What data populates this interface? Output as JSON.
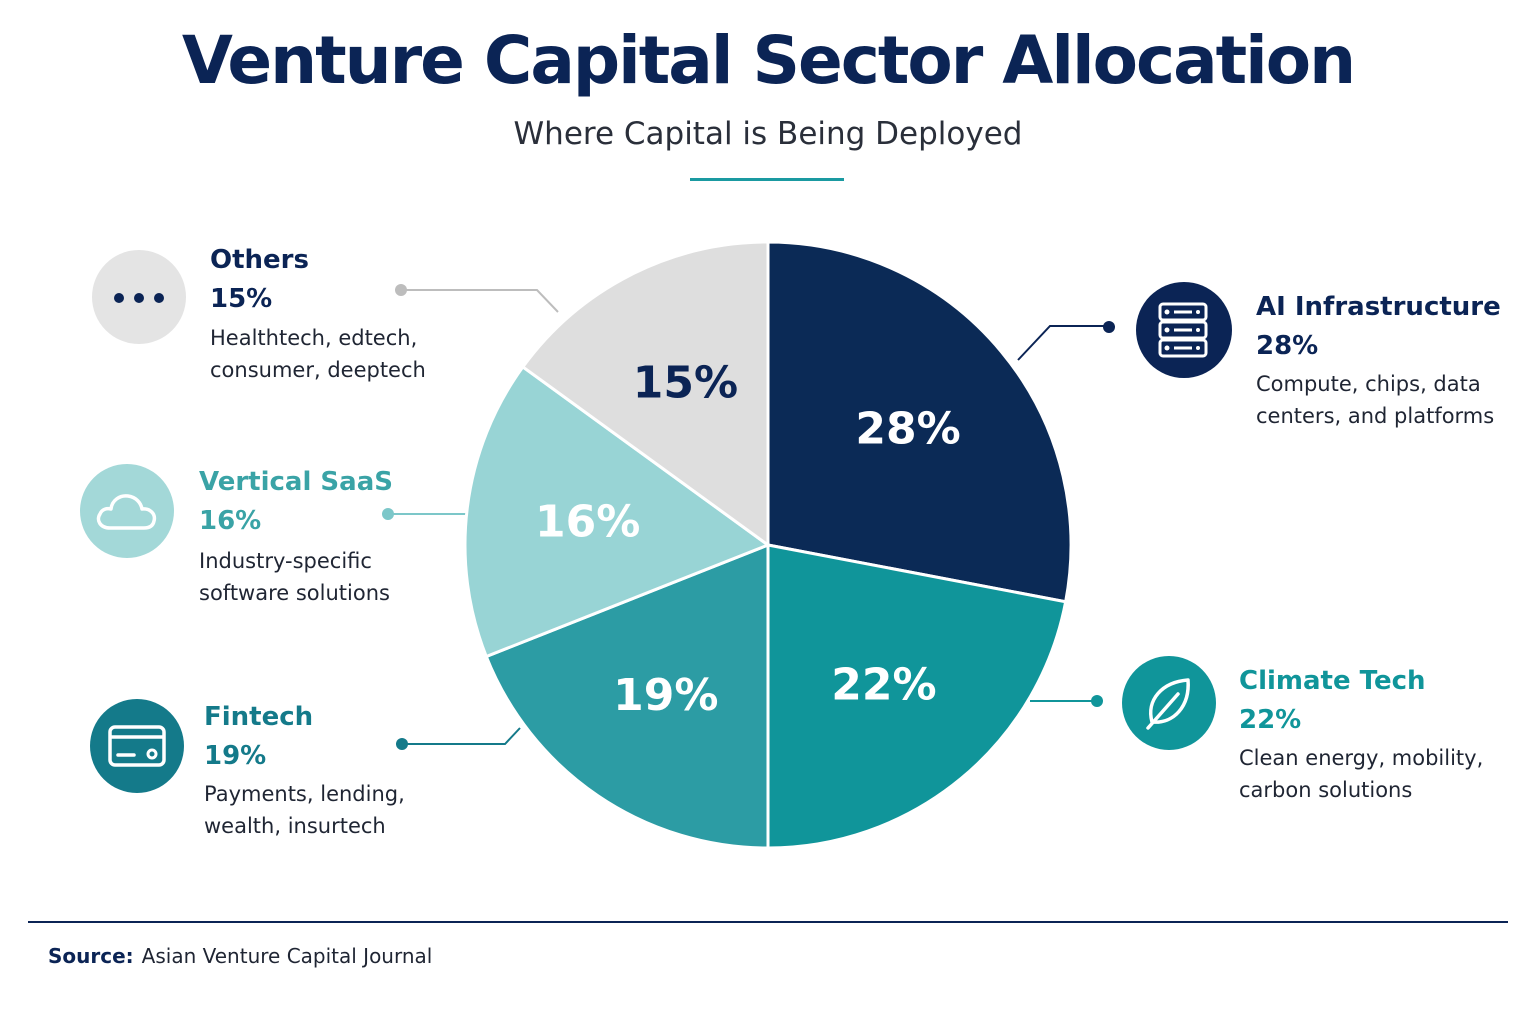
{
  "header": {
    "title": "Venture Capital Sector Allocation",
    "subtitle": "Where Capital is Being Deployed"
  },
  "chart_data": {
    "type": "pie",
    "slices": [
      {
        "name": "AI Infrastructure",
        "value": 28,
        "label": "28%",
        "description": "Compute, chips, data centers, and platforms",
        "color": "#0b2a56",
        "label_color": "#ffffff",
        "icon": "server-icon"
      },
      {
        "name": "Climate Tech",
        "value": 22,
        "label": "22%",
        "description": "Clean energy, mobility, carbon solutions",
        "color": "#10959a",
        "label_color": "#ffffff",
        "icon": "leaf-icon"
      },
      {
        "name": "Fintech",
        "value": 19,
        "label": "19%",
        "description": "Payments, lending, wealth, insurtech",
        "color": "#2c9ca4",
        "label_color": "#ffffff",
        "icon": "credit-card-icon"
      },
      {
        "name": "Vertical SaaS",
        "value": 16,
        "label": "16%",
        "description": "Industry-specific software solutions",
        "color": "#98d4d5",
        "label_color": "#ffffff",
        "icon": "cloud-icon"
      },
      {
        "name": "Others",
        "value": 15,
        "label": "15%",
        "description": "Healthtech, edtech, consumer, deeptech",
        "color": "#dedede",
        "label_color": "#0b2455",
        "icon": "more-dots-icon"
      }
    ]
  },
  "legend": {
    "ai": {
      "name": "AI Infrastructure",
      "pct": "28%",
      "desc1": "Compute, chips, data",
      "desc2": "centers, and platforms",
      "name_color": "#0b2455",
      "icon_bg": "#0b2455"
    },
    "climate": {
      "name": "Climate Tech",
      "pct": "22%",
      "desc1": "Clean energy, mobility,",
      "desc2": "carbon solutions",
      "name_color": "#10959a",
      "icon_bg": "#10959a"
    },
    "fintech": {
      "name": "Fintech",
      "pct": "19%",
      "desc1": "Payments, lending,",
      "desc2": "wealth, insurtech",
      "name_color": "#147a8a",
      "icon_bg": "#147a8a"
    },
    "saas": {
      "name": "Vertical SaaS",
      "pct": "16%",
      "desc1": "Industry-specific",
      "desc2": "software solutions",
      "name_color": "#3aa3a6",
      "icon_bg": "#a3d8d8"
    },
    "others": {
      "name": "Others",
      "pct": "15%",
      "desc1": "Healthtech, edtech,",
      "desc2": "consumer, deeptech",
      "name_color": "#0b2455",
      "icon_bg": "#e4e4e4"
    }
  },
  "footer": {
    "source_label": "Source:",
    "source_text": "Asian Venture Capital Journal"
  }
}
